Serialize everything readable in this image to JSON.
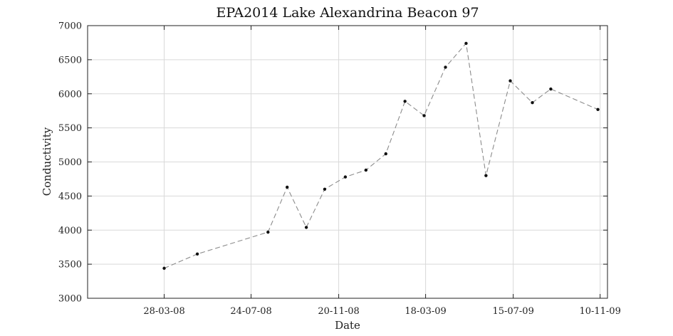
{
  "chart_data": {
    "type": "line",
    "title": "EPA2014 Lake Alexandrina Beacon 97",
    "xlabel": "Date",
    "ylabel": "Conductivity",
    "xlim": [
      "2007-12-15",
      "2009-11-20"
    ],
    "ylim": [
      3000,
      7000
    ],
    "grid": true,
    "x_ticks": [
      {
        "date": "2008-03-28",
        "label": "28-03-08"
      },
      {
        "date": "2008-07-24",
        "label": "24-07-08"
      },
      {
        "date": "2008-11-20",
        "label": "20-11-08"
      },
      {
        "date": "2009-03-18",
        "label": "18-03-09"
      },
      {
        "date": "2009-07-15",
        "label": "15-07-09"
      },
      {
        "date": "2009-11-10",
        "label": "10-11-09"
      }
    ],
    "y_ticks": [
      3000,
      3500,
      4000,
      4500,
      5000,
      5500,
      6000,
      6500,
      7000
    ],
    "series": [
      {
        "x": [
          "2008-03-28",
          "2008-05-12",
          "2008-08-16",
          "2008-09-11",
          "2008-10-07",
          "2008-11-01",
          "2008-11-29",
          "2008-12-27",
          "2009-01-23",
          "2009-02-18",
          "2009-03-16",
          "2009-04-14",
          "2009-05-12",
          "2009-06-08",
          "2009-07-11",
          "2009-08-10",
          "2009-09-04",
          "2009-11-07"
        ],
        "y": [
          3440,
          3650,
          3970,
          4630,
          4040,
          4600,
          4780,
          4880,
          5120,
          5890,
          5680,
          6390,
          6740,
          4800,
          6190,
          5870,
          6070,
          5770
        ]
      }
    ]
  }
}
